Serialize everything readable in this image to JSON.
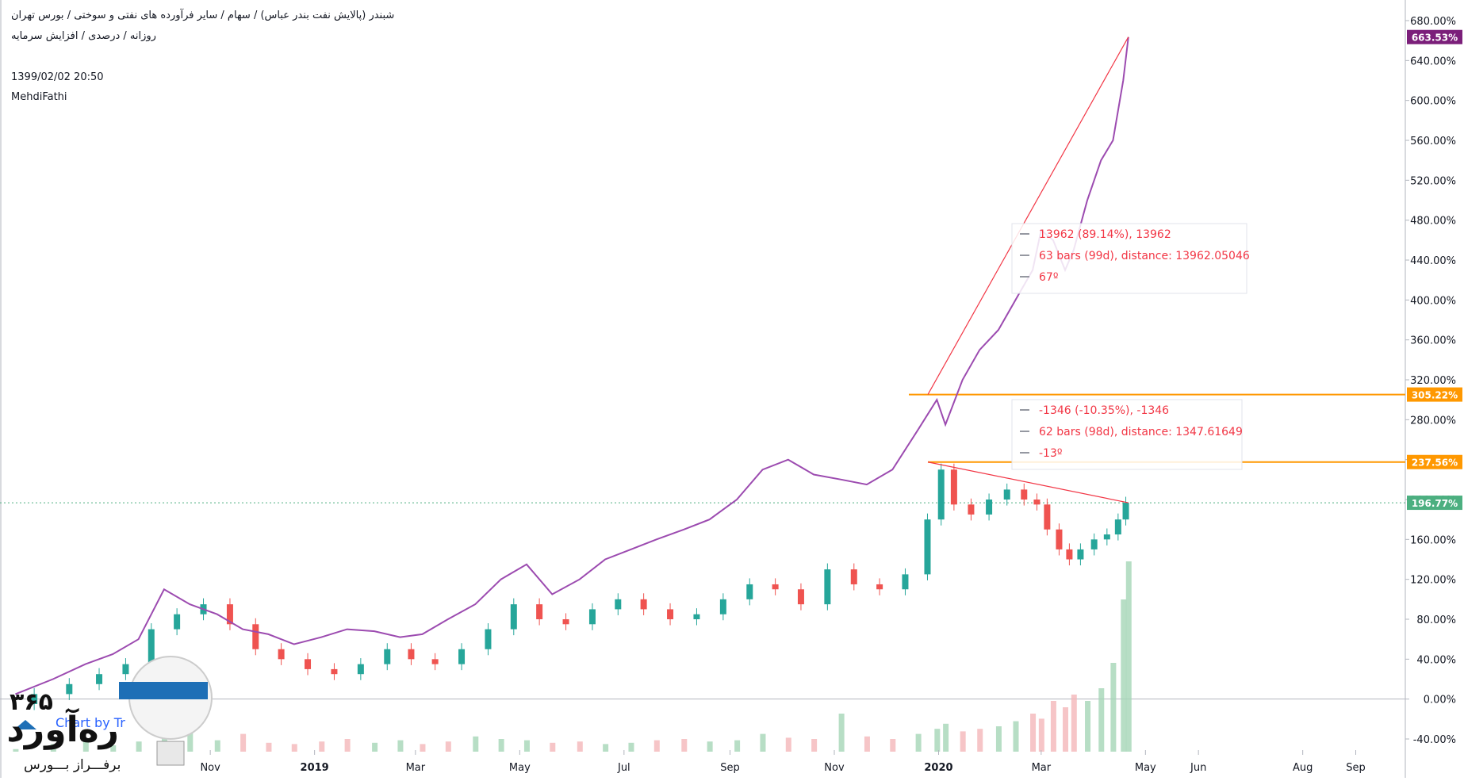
{
  "header": {
    "line1": "شبندر (پالایش نفت بندر عباس) / سهام / سایر فرآورده های نفتی و سوختی / بورس تهران",
    "line2": "روزانه / درصدی / افزایش سرمایه",
    "datetime": "1399/02/02 20:50",
    "author": "MehdiFathi"
  },
  "colors": {
    "compare_line": "#9c4bb0",
    "candle_up": "#26a69a",
    "candle_down": "#ef5350",
    "orange_level": "#ff9800",
    "trend_line": "#f23645",
    "current_price_label": "#4caf80",
    "badge_compare": "#7b1f7a"
  },
  "chart_data": {
    "type": "line",
    "scale": "percent",
    "ylim": [
      -40,
      680
    ],
    "y_ticks": [
      "680.00%",
      "640.00%",
      "600.00%",
      "560.00%",
      "520.00%",
      "480.00%",
      "440.00%",
      "400.00%",
      "360.00%",
      "320.00%",
      "280.00%",
      "240.00%",
      "200.00%",
      "160.00%",
      "120.00%",
      "80.00%",
      "40.00%",
      "0.00%",
      "-40.00%"
    ],
    "x_ticks": [
      "Nov",
      "2019",
      "Mar",
      "May",
      "Jul",
      "Sep",
      "Nov",
      "2020",
      "Mar",
      "May",
      "Jun",
      "Aug",
      "Sep"
    ],
    "price_labels": [
      {
        "text": "663.53%",
        "value": 663.53,
        "kind": "compare"
      },
      {
        "text": "305.22%",
        "value": 305.22,
        "kind": "orange"
      },
      {
        "text": "237.56%",
        "value": 237.56,
        "kind": "orange"
      },
      {
        "text": "196.77%",
        "value": 196.77,
        "kind": "current"
      }
    ],
    "horizontal_levels": [
      305.22,
      237.56
    ],
    "series": [
      {
        "kind": "line",
        "x": [
          "2018-07-10",
          "2018-08-01",
          "2018-08-20",
          "2018-09-05",
          "2018-09-20",
          "2018-10-05",
          "2018-10-20",
          "2018-11-05",
          "2018-11-20",
          "2018-12-05",
          "2018-12-20",
          "2019-01-05",
          "2019-01-20",
          "2019-02-05",
          "2019-02-20",
          "2019-03-05",
          "2019-03-20",
          "2019-04-05",
          "2019-04-20",
          "2019-05-05",
          "2019-05-20",
          "2019-06-05",
          "2019-06-20",
          "2019-07-05",
          "2019-07-20",
          "2019-08-05",
          "2019-08-20",
          "2019-09-05",
          "2019-09-20",
          "2019-10-05",
          "2019-10-20",
          "2019-11-05",
          "2019-11-20",
          "2019-12-05",
          "2019-12-20",
          "2019-12-31",
          "2020-01-05",
          "2020-01-15",
          "2020-01-25",
          "2020-02-05",
          "2020-02-15",
          "2020-02-25",
          "2020-03-01",
          "2020-03-08",
          "2020-03-15",
          "2020-03-20",
          "2020-03-28",
          "2020-04-05",
          "2020-04-12",
          "2020-04-18",
          "2020-04-21"
        ],
        "values": [
          5,
          20,
          35,
          45,
          60,
          110,
          95,
          85,
          70,
          65,
          55,
          62,
          70,
          68,
          62,
          65,
          80,
          95,
          120,
          135,
          105,
          120,
          140,
          150,
          160,
          170,
          180,
          200,
          230,
          240,
          225,
          220,
          215,
          230,
          270,
          300,
          275,
          320,
          350,
          370,
          400,
          430,
          470,
          460,
          430,
          450,
          500,
          540,
          560,
          620,
          663.53
        ]
      },
      {
        "kind": "candles",
        "x": [
          "2018-07-10",
          "2018-08-01",
          "2018-08-20",
          "2018-09-05",
          "2018-09-20",
          "2018-10-05",
          "2018-10-20",
          "2018-11-05",
          "2018-11-20",
          "2018-12-05",
          "2018-12-20",
          "2019-01-05",
          "2019-01-20",
          "2019-02-05",
          "2019-02-20",
          "2019-03-05",
          "2019-03-20",
          "2019-04-05",
          "2019-04-20",
          "2019-05-05",
          "2019-05-20",
          "2019-06-05",
          "2019-06-20",
          "2019-07-05",
          "2019-07-20",
          "2019-08-05",
          "2019-08-20",
          "2019-09-05",
          "2019-09-20",
          "2019-10-05",
          "2019-10-20",
          "2019-11-05",
          "2019-11-20",
          "2019-12-05",
          "2019-12-20",
          "2019-12-31",
          "2020-01-05",
          "2020-01-15",
          "2020-01-25",
          "2020-02-05",
          "2020-02-15",
          "2020-02-25",
          "2020-03-01",
          "2020-03-08",
          "2020-03-15",
          "2020-03-20",
          "2020-03-28",
          "2020-04-05",
          "2020-04-12",
          "2020-04-18",
          "2020-04-21"
        ],
        "values": [
          -5,
          5,
          15,
          25,
          35,
          70,
          85,
          95,
          75,
          50,
          40,
          30,
          25,
          35,
          50,
          40,
          35,
          50,
          70,
          95,
          80,
          75,
          90,
          100,
          90,
          80,
          85,
          100,
          115,
          110,
          95,
          130,
          115,
          110,
          125,
          180,
          230,
          195,
          185,
          200,
          210,
          200,
          195,
          170,
          150,
          140,
          150,
          160,
          165,
          180,
          196.77
        ]
      },
      {
        "kind": "volume",
        "values": [
          2,
          6,
          10,
          5,
          8,
          12,
          18,
          9,
          14,
          7,
          6,
          8,
          10,
          7,
          9,
          6,
          8,
          12,
          10,
          9,
          7,
          8,
          6,
          7,
          9,
          10,
          8,
          9,
          14,
          11,
          10,
          30,
          12,
          10,
          14,
          18,
          22,
          16,
          18,
          20,
          24,
          30,
          26,
          40,
          35,
          45,
          40,
          50,
          70,
          120,
          150
        ]
      }
    ],
    "measure_up": {
      "line1": "13962 (89.14%), 13962",
      "line2": "63 bars (99d), distance: 13962.05046",
      "line3": "67º"
    },
    "measure_down": {
      "line1": "-1346 (-10.35%), -1346",
      "line2": "62 bars (98d), distance: 1347.61649",
      "line3": "-13º"
    }
  },
  "watermark": {
    "digits": "۳۶۵",
    "brand": "ره‌آورد",
    "tagline": "برفـــراز بـــورس",
    "tv_text": "Chart by Tr"
  }
}
